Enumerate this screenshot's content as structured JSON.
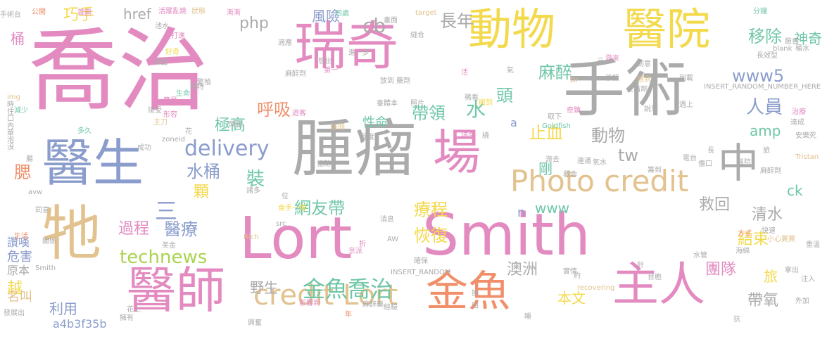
{
  "palette": {
    "pink": "#e38bc1",
    "gray": "#ababab",
    "blue": "#8b9dcc",
    "tan": "#e2c28f",
    "orange": "#f08f6a",
    "yellow": "#f3d94c",
    "green": "#6fc7a7",
    "lime": "#abd34e"
  },
  "words": [
    {
      "text": "喬治",
      "color": "pink"
    },
    {
      "text": "瑞奇",
      "color": "pink"
    },
    {
      "text": "動物",
      "color": "yellow"
    },
    {
      "text": "醫院",
      "color": "yellow"
    },
    {
      "text": "手術",
      "color": "gray"
    },
    {
      "text": "腫瘤",
      "color": "gray"
    },
    {
      "text": "醫生",
      "color": "blue"
    },
    {
      "text": "場",
      "color": "pink"
    },
    {
      "text": "中",
      "color": "gray"
    },
    {
      "text": "牠",
      "color": "tan"
    },
    {
      "text": "Lort",
      "color": "pink"
    },
    {
      "text": "Smith",
      "color": "pink"
    },
    {
      "text": "醫師",
      "color": "pink"
    },
    {
      "text": "金魚",
      "color": "orange"
    },
    {
      "text": "主人",
      "color": "pink"
    },
    {
      "text": "Photo credit",
      "color": "tan"
    },
    {
      "text": "credit Lort",
      "color": "tan"
    },
    {
      "text": "金魚喬治",
      "color": "green"
    },
    {
      "text": "delivery",
      "color": "blue"
    },
    {
      "text": "technews",
      "color": "lime"
    },
    {
      "text": "www5",
      "color": "blue"
    },
    {
      "text": "php",
      "color": "gray"
    },
    {
      "text": "cb",
      "color": "gray"
    },
    {
      "text": "長年",
      "color": "gray"
    },
    {
      "text": "移除",
      "color": "green"
    },
    {
      "text": "麻醉",
      "color": "green"
    },
    {
      "text": "人員",
      "color": "blue"
    },
    {
      "text": "呼吸",
      "color": "orange"
    },
    {
      "text": "水",
      "color": "green"
    },
    {
      "text": "頭",
      "color": "green"
    },
    {
      "text": "帶領",
      "color": "green"
    },
    {
      "text": "止血",
      "color": "yellow"
    },
    {
      "text": "amp",
      "color": "green"
    },
    {
      "text": "動物",
      "color": "gray"
    },
    {
      "text": "極高",
      "color": "green"
    },
    {
      "text": "性命",
      "color": "green"
    },
    {
      "text": "水桶",
      "color": "blue"
    },
    {
      "text": "裝",
      "color": "green"
    },
    {
      "text": "tw",
      "color": "gray"
    },
    {
      "text": "剛",
      "color": "green"
    },
    {
      "text": "顆",
      "color": "yellow"
    },
    {
      "text": "網友帶",
      "color": "green"
    },
    {
      "text": "療程",
      "color": "yellow"
    },
    {
      "text": "www",
      "color": "green"
    },
    {
      "text": "救回",
      "color": "gray"
    },
    {
      "text": "清水",
      "color": "gray"
    },
    {
      "text": "過程",
      "color": "pink"
    },
    {
      "text": "醫療",
      "color": "blue"
    },
    {
      "text": "恢復",
      "color": "yellow"
    },
    {
      "text": "結束",
      "color": "yellow"
    },
    {
      "text": "團隊",
      "color": "pink"
    },
    {
      "text": "帶氧",
      "color": "gray"
    },
    {
      "text": "澳洲",
      "color": "gray"
    },
    {
      "text": "本文",
      "color": "yellow"
    },
    {
      "text": "利用",
      "color": "blue"
    },
    {
      "text": "野生",
      "color": "gray"
    },
    {
      "text": "旅",
      "color": "yellow"
    },
    {
      "text": "a4b3f35b",
      "color": "blue"
    },
    {
      "text": "越",
      "color": "yellow"
    },
    {
      "text": "危害",
      "color": "blue"
    },
    {
      "text": "原本",
      "color": "gray"
    },
    {
      "text": "名叫",
      "color": "tan"
    },
    {
      "text": "讚嘆",
      "color": "blue"
    },
    {
      "text": "三",
      "color": "blue"
    },
    {
      "text": "腮",
      "color": "orange"
    },
    {
      "text": "桶",
      "color": "pink"
    },
    {
      "text": "巧手",
      "color": "yellow"
    },
    {
      "text": "href",
      "color": "gray"
    },
    {
      "text": "風險",
      "color": "blue"
    },
    {
      "text": "神奇",
      "color": "green"
    },
    {
      "text": "ck",
      "color": "green"
    },
    {
      "text": "n",
      "color": "blue"
    },
    {
      "text": "a",
      "color": "blue"
    },
    {
      "text": "手術台",
      "color": "gray"
    },
    {
      "text": "公開",
      "color": "orange"
    },
    {
      "text": "首圖",
      "color": "pink"
    },
    {
      "text": "活躍亂跳",
      "color": "pink"
    },
    {
      "text": "狀態",
      "color": "tan"
    },
    {
      "text": "漸漸",
      "color": "pink"
    },
    {
      "text": "四處",
      "color": "green"
    },
    {
      "text": "target",
      "color": "tan"
    },
    {
      "text": "分鐘",
      "color": "green"
    },
    {
      "text": "池水",
      "color": "gray"
    },
    {
      "text": "_blank",
      "color": "gray"
    },
    {
      "text": "桶水",
      "color": "gray"
    },
    {
      "text": "長效型",
      "color": "gray"
    },
    {
      "text": "INSERT_RANDOM_NUMBER_HERE",
      "color": "gray"
    },
    {
      "text": "Goldfish",
      "color": "green"
    },
    {
      "text": "安樂死",
      "color": "gray"
    },
    {
      "text": "電台",
      "color": "gray"
    },
    {
      "text": "麻醉劑",
      "color": "gray"
    },
    {
      "text": "Tristan",
      "color": "tan"
    },
    {
      "text": "INSERT_RANDOM",
      "color": "gray"
    },
    {
      "text": "小心翼翼",
      "color": "tan"
    },
    {
      "text": "recovering",
      "color": "tan"
    },
    {
      "text": "台胞",
      "color": "gray"
    },
    {
      "text": "影響到",
      "color": "pink"
    },
    {
      "text": "麻醉藥",
      "color": "gray"
    },
    {
      "text": "消息",
      "color": "gray"
    },
    {
      "text": "照片",
      "color": "gray"
    },
    {
      "text": "第一",
      "color": "pink"
    },
    {
      "text": "遊客",
      "color": "pink"
    },
    {
      "text": "搬到",
      "color": "yellow"
    },
    {
      "text": "取下",
      "color": "gray"
    },
    {
      "text": "Dr",
      "color": "tan"
    },
    {
      "text": "救命",
      "color": "gray"
    },
    {
      "text": "img",
      "color": "tan"
    },
    {
      "text": "成功",
      "color": "gray"
    },
    {
      "text": "多久",
      "color": "green"
    },
    {
      "text": "zoneid",
      "color": "gray"
    },
    {
      "text": "avw",
      "color": "gray"
    },
    {
      "text": "Smith",
      "color": "gray"
    },
    {
      "text": "Rich",
      "color": "tan"
    },
    {
      "text": "AW",
      "color": "gray"
    },
    {
      "text": "src",
      "color": "gray"
    },
    {
      "text": "發展出",
      "color": "gray"
    },
    {
      "text": "生活",
      "color": "orange"
    },
    {
      "text": "花上",
      "color": "gray"
    },
    {
      "text": "興奮",
      "color": "gray"
    },
    {
      "text": "外加",
      "color": "gray"
    },
    {
      "text": "注入",
      "color": "gray"
    },
    {
      "text": "拿出",
      "color": "gray"
    },
    {
      "text": "海綿",
      "color": "gray"
    },
    {
      "text": "水管",
      "color": "gray"
    },
    {
      "text": "針",
      "color": "gray"
    },
    {
      "text": "方式",
      "color": "orange"
    },
    {
      "text": "快速",
      "color": "gray"
    },
    {
      "text": "關係",
      "color": "gray"
    },
    {
      "text": "經驗",
      "color": "gray"
    },
    {
      "text": "京派",
      "color": "pink"
    },
    {
      "text": "重溫",
      "color": "gray"
    },
    {
      "text": "確保",
      "color": "gray"
    },
    {
      "text": "折",
      "color": "pink"
    },
    {
      "text": "美金",
      "color": "gray"
    },
    {
      "text": "同意",
      "color": "gray"
    },
    {
      "text": "位",
      "color": "gray"
    },
    {
      "text": "食手一搏",
      "color": "yellow"
    },
    {
      "text": "諸多",
      "color": "gray"
    },
    {
      "text": "游去",
      "color": "gray"
    },
    {
      "text": "籌到",
      "color": "gray"
    },
    {
      "text": "氧水",
      "color": "gray"
    },
    {
      "text": "傷口",
      "color": "gray"
    },
    {
      "text": "醫院",
      "color": "gray"
    },
    {
      "text": "連通",
      "color": "gray"
    },
    {
      "text": "協助",
      "color": "gray"
    },
    {
      "text": "瑞奇",
      "color": "pink"
    },
    {
      "text": "程度",
      "color": "gray"
    },
    {
      "text": "訪問",
      "color": "tan"
    },
    {
      "text": "奇蹟",
      "color": "pink"
    },
    {
      "text": "臺體本",
      "color": "gray"
    },
    {
      "text": "移植",
      "color": "gray"
    },
    {
      "text": "創意",
      "color": "gray"
    },
    {
      "text": "感到",
      "color": "tan"
    },
    {
      "text": "游來",
      "color": "pink"
    },
    {
      "text": "止痛劑",
      "color": "gray"
    },
    {
      "text": "列載",
      "color": "gray"
    },
    {
      "text": "遇上",
      "color": "gray"
    },
    {
      "text": "稀看",
      "color": "gray"
    },
    {
      "text": "治療",
      "color": "pink"
    },
    {
      "text": "減少",
      "color": "green"
    },
    {
      "text": "獨特",
      "color": "gray"
    },
    {
      "text": "打進",
      "color": "pink"
    },
    {
      "text": "繁殖",
      "color": "gray"
    },
    {
      "text": "生命",
      "color": "green"
    },
    {
      "text": "好奇",
      "color": "yellow"
    },
    {
      "text": "主刀",
      "color": "tan"
    },
    {
      "text": "接受",
      "color": "gray"
    },
    {
      "text": "形容",
      "color": "pink"
    },
    {
      "text": "算是",
      "color": "pink"
    },
    {
      "text": "放到",
      "color": "gray"
    },
    {
      "text": "臉書",
      "color": "gray"
    },
    {
      "text": "達成",
      "color": "gray"
    },
    {
      "text": "說到",
      "color": "gray"
    },
    {
      "text": "瀕臨",
      "color": "gray"
    },
    {
      "text": "適應",
      "color": "gray"
    },
    {
      "text": "麻醉劑",
      "color": "gray"
    },
    {
      "text": "想出",
      "color": "gray"
    },
    {
      "text": "進一步",
      "color": "gray"
    },
    {
      "text": "爾後",
      "color": "gray"
    },
    {
      "text": "擁有",
      "color": "gray"
    },
    {
      "text": "實情",
      "color": "gray"
    },
    {
      "text": "畫面",
      "color": "gray"
    },
    {
      "text": "縫合",
      "color": "gray"
    },
    {
      "text": "藥劑",
      "color": "gray"
    },
    {
      "text": "活",
      "color": "pink"
    },
    {
      "text": "繞",
      "color": "gray"
    },
    {
      "text": "元",
      "color": "gray"
    },
    {
      "text": "長",
      "color": "gray"
    },
    {
      "text": "約",
      "color": "gray"
    },
    {
      "text": "換",
      "color": "gray"
    },
    {
      "text": "四",
      "color": "gray"
    },
    {
      "text": "睡",
      "color": "gray"
    },
    {
      "text": "抗",
      "color": "gray"
    },
    {
      "text": "年",
      "color": "orange"
    },
    {
      "text": "花",
      "color": "gray"
    },
    {
      "text": "旅",
      "color": "gray"
    },
    {
      "text": "腸",
      "color": "gray"
    },
    {
      "text": "氣",
      "color": "gray"
    },
    {
      "text": "時",
      "color": "gray"
    },
    {
      "text": "住",
      "color": "gray"
    },
    {
      "text": "口",
      "color": "gray"
    },
    {
      "text": "內",
      "color": "gray"
    },
    {
      "text": "華",
      "color": "gray"
    },
    {
      "text": "泡",
      "color": "gray"
    },
    {
      "text": "沒",
      "color": "gray"
    }
  ]
}
